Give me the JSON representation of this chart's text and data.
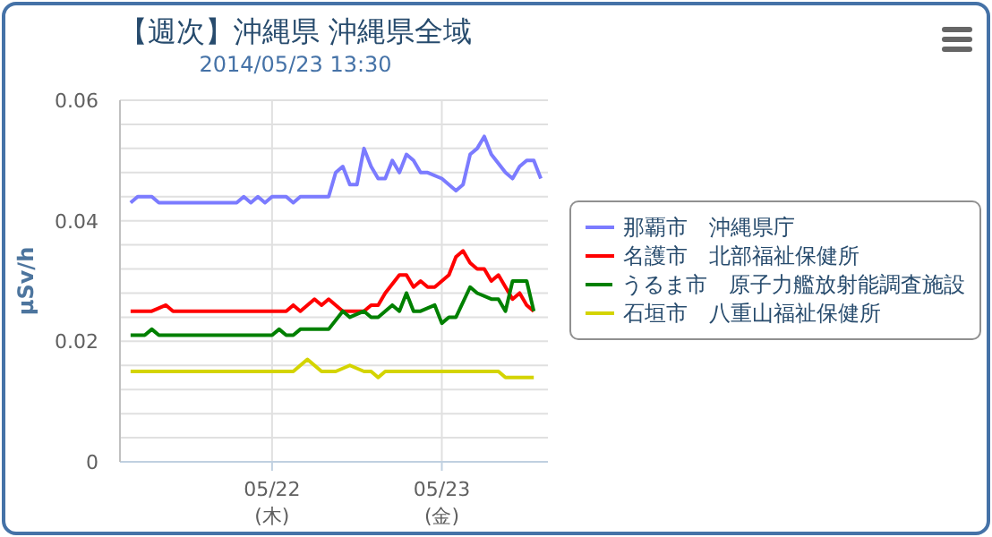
{
  "chart_data": {
    "type": "line",
    "title": "【週次】沖縄県 沖縄県全域",
    "subtitle": "2014/05/23 13:30",
    "ylabel": "μSv/h",
    "xlim": [
      "2014-05-21T02:30",
      "2014-05-23T15:00"
    ],
    "xticks": [
      {
        "value": "2014-05-22",
        "label": "05/22\n(木)"
      },
      {
        "value": "2014-05-23",
        "label": "05/23\n(金)"
      }
    ],
    "ylim": [
      0,
      0.06
    ],
    "yticks": [
      0,
      {
        "value": 0.004,
        "label": null
      },
      {
        "value": 0.008,
        "label": null
      },
      {
        "value": 0.012,
        "label": null
      },
      {
        "value": 0.016,
        "label": null
      },
      0.02,
      {
        "value": 0.024,
        "label": null
      },
      {
        "value": 0.028,
        "label": null
      },
      {
        "value": 0.032,
        "label": null
      },
      {
        "value": 0.036,
        "label": null
      },
      0.04,
      {
        "value": 0.044,
        "label": null
      },
      {
        "value": 0.048,
        "label": null
      },
      {
        "value": 0.052,
        "label": null
      },
      {
        "value": 0.056,
        "label": null
      },
      0.06
    ],
    "grid": true,
    "legend": "right",
    "marker": "none",
    "line_style": "solid",
    "series": [
      {
        "name": "那覇市　沖縄県庁",
        "color": "#7b7bff",
        "x": [
          "2014-05-21T04:00",
          "2014-05-21T05:00",
          "2014-05-21T07:00",
          "2014-05-21T08:00",
          "2014-05-21T19:00",
          "2014-05-21T20:00",
          "2014-05-21T21:00",
          "2014-05-21T22:00",
          "2014-05-21T23:00",
          "2014-05-22T00:00",
          "2014-05-22T02:00",
          "2014-05-22T03:00",
          "2014-05-22T04:00",
          "2014-05-22T08:00",
          "2014-05-22T09:00",
          "2014-05-22T10:00",
          "2014-05-22T11:00",
          "2014-05-22T12:00",
          "2014-05-22T13:00",
          "2014-05-22T14:00",
          "2014-05-22T15:00",
          "2014-05-22T16:00",
          "2014-05-22T17:00",
          "2014-05-22T18:00",
          "2014-05-22T19:00",
          "2014-05-22T20:00",
          "2014-05-22T21:00",
          "2014-05-22T22:00",
          "2014-05-23T00:00",
          "2014-05-23T02:00",
          "2014-05-23T03:00",
          "2014-05-23T04:00",
          "2014-05-23T05:00",
          "2014-05-23T06:00",
          "2014-05-23T07:00",
          "2014-05-23T09:00",
          "2014-05-23T10:00",
          "2014-05-23T11:00",
          "2014-05-23T12:00",
          "2014-05-23T13:00",
          "2014-05-23T14:00"
        ],
        "values": [
          0.043,
          0.044,
          0.044,
          0.043,
          0.043,
          0.044,
          0.043,
          0.044,
          0.043,
          0.044,
          0.044,
          0.043,
          0.044,
          0.044,
          0.048,
          0.049,
          0.046,
          0.046,
          0.052,
          0.049,
          0.047,
          0.047,
          0.05,
          0.048,
          0.051,
          0.05,
          0.048,
          0.048,
          0.047,
          0.045,
          0.046,
          0.051,
          0.052,
          0.054,
          0.051,
          0.048,
          0.047,
          0.049,
          0.05,
          0.05,
          0.047
        ]
      },
      {
        "name": "名護市　北部福祉保健所",
        "color": "#ff0000",
        "x": [
          "2014-05-21T04:00",
          "2014-05-21T07:00",
          "2014-05-21T09:00",
          "2014-05-21T10:00",
          "2014-05-22T02:00",
          "2014-05-22T03:00",
          "2014-05-22T04:00",
          "2014-05-22T06:00",
          "2014-05-22T07:00",
          "2014-05-22T08:00",
          "2014-05-22T09:00",
          "2014-05-22T10:00",
          "2014-05-22T13:00",
          "2014-05-22T14:00",
          "2014-05-22T15:00",
          "2014-05-22T16:00",
          "2014-05-22T18:00",
          "2014-05-22T19:00",
          "2014-05-22T20:00",
          "2014-05-22T21:00",
          "2014-05-22T22:00",
          "2014-05-22T23:00",
          "2014-05-23T01:00",
          "2014-05-23T02:00",
          "2014-05-23T03:00",
          "2014-05-23T04:00",
          "2014-05-23T05:00",
          "2014-05-23T06:00",
          "2014-05-23T07:00",
          "2014-05-23T08:00",
          "2014-05-23T09:00",
          "2014-05-23T10:00",
          "2014-05-23T11:00",
          "2014-05-23T12:00",
          "2014-05-23T13:00"
        ],
        "values": [
          0.025,
          0.025,
          0.026,
          0.025,
          0.025,
          0.026,
          0.025,
          0.027,
          0.026,
          0.027,
          0.026,
          0.025,
          0.025,
          0.026,
          0.026,
          0.028,
          0.031,
          0.031,
          0.029,
          0.03,
          0.029,
          0.029,
          0.031,
          0.034,
          0.035,
          0.033,
          0.032,
          0.032,
          0.03,
          0.031,
          0.029,
          0.027,
          0.028,
          0.026,
          0.025
        ]
      },
      {
        "name": "うるま市　原子力艦放射能調査施設",
        "color": "#008000",
        "x": [
          "2014-05-21T04:00",
          "2014-05-21T06:00",
          "2014-05-21T07:00",
          "2014-05-21T08:00",
          "2014-05-22T00:00",
          "2014-05-22T01:00",
          "2014-05-22T02:00",
          "2014-05-22T03:00",
          "2014-05-22T04:00",
          "2014-05-22T08:00",
          "2014-05-22T10:00",
          "2014-05-22T11:00",
          "2014-05-22T13:00",
          "2014-05-22T14:00",
          "2014-05-22T15:00",
          "2014-05-22T17:00",
          "2014-05-22T18:00",
          "2014-05-22T19:00",
          "2014-05-22T20:00",
          "2014-05-22T21:00",
          "2014-05-22T23:00",
          "2014-05-23T00:00",
          "2014-05-23T01:00",
          "2014-05-23T02:00",
          "2014-05-23T04:00",
          "2014-05-23T05:00",
          "2014-05-23T07:00",
          "2014-05-23T08:00",
          "2014-05-23T09:00",
          "2014-05-23T10:00",
          "2014-05-23T11:00",
          "2014-05-23T12:00",
          "2014-05-23T13:00"
        ],
        "values": [
          0.021,
          0.021,
          0.022,
          0.021,
          0.021,
          0.022,
          0.021,
          0.021,
          0.022,
          0.022,
          0.025,
          0.024,
          0.025,
          0.024,
          0.024,
          0.026,
          0.025,
          0.028,
          0.025,
          0.025,
          0.026,
          0.023,
          0.024,
          0.024,
          0.029,
          0.028,
          0.027,
          0.027,
          0.025,
          0.03,
          0.03,
          0.03,
          0.025
        ]
      },
      {
        "name": "石垣市　八重山福祉保健所",
        "color": "#d4d400",
        "x": [
          "2014-05-21T04:00",
          "2014-05-22T03:00",
          "2014-05-22T05:00",
          "2014-05-22T07:00",
          "2014-05-22T09:00",
          "2014-05-22T11:00",
          "2014-05-22T13:00",
          "2014-05-22T14:00",
          "2014-05-22T15:00",
          "2014-05-22T16:00",
          "2014-05-23T08:00",
          "2014-05-23T09:00",
          "2014-05-23T13:00"
        ],
        "values": [
          0.015,
          0.015,
          0.017,
          0.015,
          0.015,
          0.016,
          0.015,
          0.015,
          0.014,
          0.015,
          0.015,
          0.014,
          0.014
        ]
      }
    ]
  }
}
